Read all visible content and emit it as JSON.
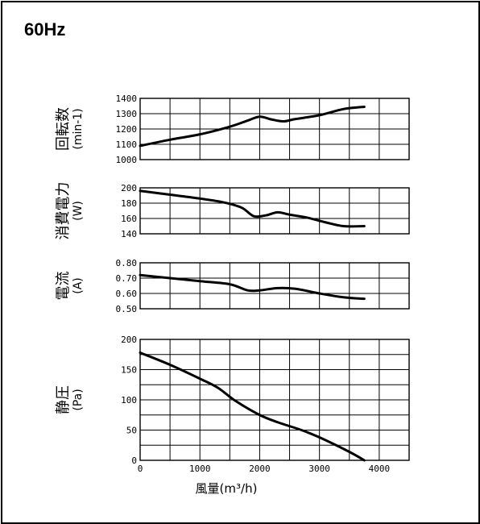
{
  "page_title": "60Hz",
  "chart_data": [
    {
      "type": "line",
      "ylabel": [
        "回転数",
        "(min-1)"
      ],
      "ylim": [
        1000,
        1400
      ],
      "yticks": [
        1000,
        1100,
        1200,
        1300,
        1400
      ],
      "ytick_labels": [
        "1000",
        "1100",
        "1200",
        "1300",
        "1400"
      ],
      "xlim": [
        0,
        4500
      ],
      "grid": true,
      "x": [
        0,
        500,
        1000,
        1500,
        1800,
        2000,
        2200,
        2400,
        2600,
        3000,
        3400,
        3750
      ],
      "values": [
        1090,
        1130,
        1165,
        1215,
        1255,
        1280,
        1262,
        1250,
        1265,
        1290,
        1330,
        1345
      ]
    },
    {
      "type": "line",
      "ylabel": [
        "消費電力",
        "(W)"
      ],
      "ylim": [
        140,
        200
      ],
      "yticks": [
        140,
        160,
        180,
        200
      ],
      "ytick_labels": [
        "140",
        "160",
        "180",
        "200"
      ],
      "xlim": [
        0,
        4500
      ],
      "grid": true,
      "x": [
        0,
        500,
        1000,
        1400,
        1700,
        1900,
        2100,
        2300,
        2500,
        2800,
        3100,
        3400,
        3750
      ],
      "values": [
        196,
        191,
        186,
        181,
        174,
        163,
        164,
        168,
        165,
        161,
        155,
        150,
        150
      ]
    },
    {
      "type": "line",
      "ylabel": [
        "電流",
        "(A)"
      ],
      "ylim": [
        0.5,
        0.8
      ],
      "yticks": [
        0.5,
        0.6,
        0.7,
        0.8
      ],
      "ytick_labels": [
        "0.50",
        "0.60",
        "0.70",
        "0.80"
      ],
      "xlim": [
        0,
        4500
      ],
      "grid": true,
      "x": [
        0,
        500,
        1000,
        1500,
        1800,
        2000,
        2300,
        2600,
        3000,
        3400,
        3750
      ],
      "values": [
        0.72,
        0.7,
        0.68,
        0.66,
        0.62,
        0.62,
        0.635,
        0.63,
        0.6,
        0.575,
        0.565
      ]
    },
    {
      "type": "line",
      "ylabel": [
        "静圧",
        "(Pa)"
      ],
      "ylim": [
        0,
        200
      ],
      "yticks": [
        0,
        50,
        100,
        150,
        200
      ],
      "ytick_labels": [
        "0",
        "50",
        "100",
        "150",
        "200"
      ],
      "xlim": [
        0,
        4500
      ],
      "xticks": [
        0,
        1000,
        2000,
        3000,
        4000
      ],
      "xtick_labels": [
        "0",
        "1000",
        "2000",
        "3000",
        "4000"
      ],
      "xlabel": "風量(m³/h)",
      "grid": true,
      "x": [
        0,
        500,
        1000,
        1300,
        1600,
        2000,
        2300,
        2700,
        3000,
        3500,
        3750
      ],
      "values": [
        178,
        158,
        135,
        120,
        98,
        75,
        63,
        50,
        38,
        14,
        0
      ]
    }
  ]
}
